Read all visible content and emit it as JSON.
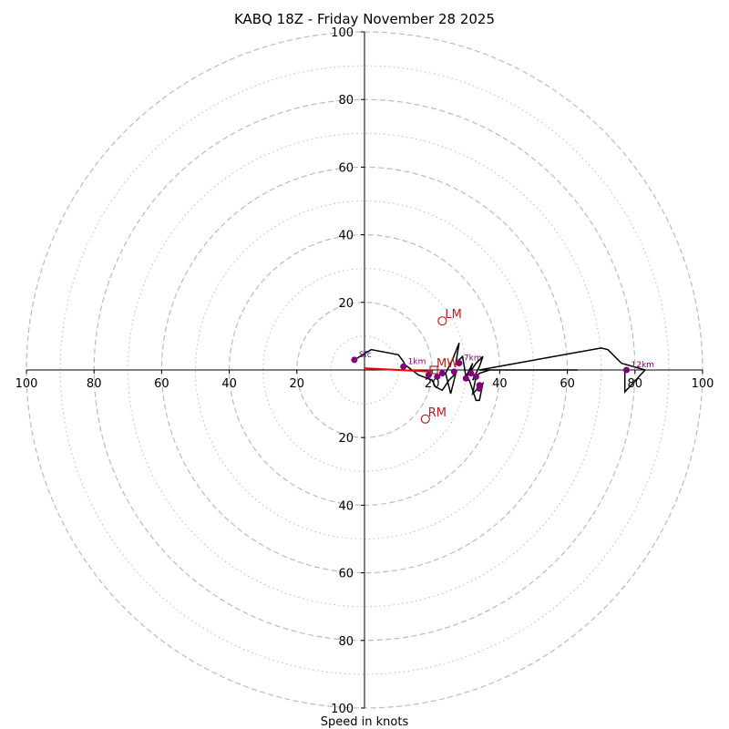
{
  "chart_data": {
    "type": "line",
    "title": "KABQ 18Z - Friday November 28 2025",
    "xlabel": "Speed in knots",
    "ylabel": "",
    "xlim": [
      -100,
      100
    ],
    "ylim": [
      -100,
      100
    ],
    "grid": true,
    "rings_major": [
      20,
      40,
      60,
      80,
      100
    ],
    "rings_minor": [
      10,
      30,
      50,
      70,
      90
    ],
    "x_ticks": [
      "100",
      "80",
      "60",
      "40",
      "20",
      "20",
      "40",
      "60",
      "80",
      "100"
    ],
    "x_tick_values": [
      -100,
      -80,
      -60,
      -40,
      -20,
      20,
      40,
      60,
      80,
      100
    ],
    "y_ticks": [
      "100",
      "80",
      "60",
      "40",
      "20",
      "20",
      "40",
      "60",
      "80",
      "100"
    ],
    "y_tick_values": [
      100,
      80,
      60,
      40,
      20,
      -20,
      -40,
      -60,
      -80,
      -100
    ],
    "series": [
      {
        "name": "hodograph",
        "color": "#000000",
        "u": [
          -3,
          2,
          10,
          11.5,
          12,
          16,
          20,
          21,
          23,
          25,
          27,
          25.5,
          24,
          26,
          28,
          27,
          29,
          30,
          32,
          31,
          33,
          35,
          34,
          32,
          33,
          32,
          35,
          34,
          33,
          31,
          30,
          31,
          33,
          34,
          37,
          40,
          45,
          50,
          54,
          63,
          45,
          41,
          40,
          38,
          37,
          35,
          34,
          70,
          72,
          76,
          83,
          77,
          77
        ],
        "v": [
          3,
          6,
          4.5,
          2.5,
          1.5,
          -1.5,
          -3,
          -5,
          -6,
          -3,
          -1,
          -7,
          -1,
          3,
          8,
          2,
          4,
          -2,
          2,
          -1,
          2,
          4,
          1,
          -3,
          -2,
          -7,
          -4,
          -9,
          -9,
          -3,
          -3,
          0,
          -2,
          -1,
          0,
          0,
          0,
          0,
          0,
          0,
          0,
          0,
          0,
          0,
          0,
          0,
          0,
          6.5,
          6,
          2,
          0,
          -6.5,
          0
        ]
      },
      {
        "name": "mean-wind-vector",
        "color": "#ff0000",
        "u": [
          0,
          20
        ],
        "v": [
          0.5,
          -0.5
        ]
      }
    ],
    "height_markers": [
      {
        "label": "Sfc",
        "u": -3,
        "v": 3
      },
      {
        "label": "1km",
        "u": 11.5,
        "v": 1
      },
      {
        "label": "",
        "u": 19,
        "v": -1.5
      },
      {
        "label": "",
        "u": 21.5,
        "v": -2
      },
      {
        "label": "",
        "u": 23,
        "v": -1
      },
      {
        "label": "",
        "u": 26.5,
        "v": -0.5
      },
      {
        "label": "7km",
        "u": 28,
        "v": 2
      },
      {
        "label": "",
        "u": 30,
        "v": -2.5
      },
      {
        "label": "",
        "u": 31.5,
        "v": -1
      },
      {
        "label": "",
        "u": 33,
        "v": -2
      },
      {
        "label": "",
        "u": 34,
        "v": -4.5
      },
      {
        "label": "",
        "u": 34,
        "v": -5.5
      },
      {
        "label": "12km",
        "u": 77.5,
        "v": 0
      }
    ],
    "motion_markers": [
      {
        "label": "LM",
        "u": 23,
        "v": 14.5,
        "shape": "circle"
      },
      {
        "label": "RM",
        "u": 18,
        "v": -14.5,
        "shape": "circle"
      },
      {
        "label": "MW",
        "u": 20.5,
        "v": 0,
        "shape": "square"
      }
    ],
    "colors": {
      "hodograph": "#000000",
      "mean_wind": "#ff0000",
      "markers": "#800080",
      "motion": "#b22222",
      "grid": "#bbbbbb",
      "axis": "#000000"
    }
  }
}
